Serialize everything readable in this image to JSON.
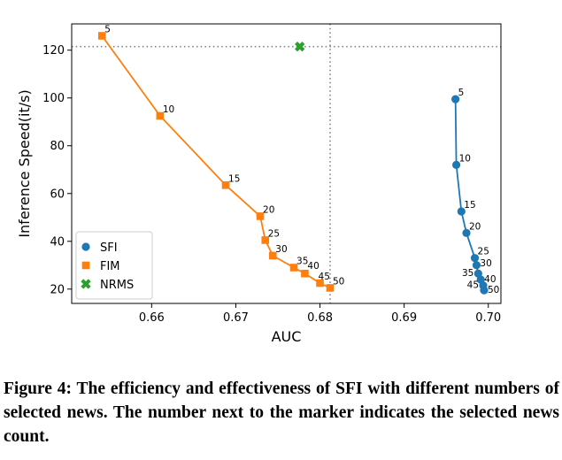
{
  "chart_data": {
    "type": "scatter",
    "xlabel": "AUC",
    "ylabel": "Inference Speed(it/s)",
    "xlim": [
      0.6505,
      0.7015
    ],
    "ylim": [
      14,
      131
    ],
    "xticks": [
      "0.66",
      "0.67",
      "0.68",
      "0.69",
      "0.70"
    ],
    "xtick_values": [
      0.66,
      0.67,
      0.68,
      0.69,
      0.7
    ],
    "yticks": [
      "20",
      "40",
      "60",
      "80",
      "100",
      "120"
    ],
    "ytick_values": [
      20,
      40,
      60,
      80,
      100,
      120
    ],
    "legend_position": "lower-left",
    "series": [
      {
        "name": "SFI",
        "color": "#1f77b4",
        "marker": "circle",
        "x": [
          0.6961,
          0.6962,
          0.6968,
          0.6974,
          0.6984,
          0.6986,
          0.6988,
          0.6991,
          0.6994,
          0.6995
        ],
        "y": [
          99.5,
          72,
          52.5,
          43.5,
          33,
          30,
          26.5,
          24,
          21.5,
          19.5
        ],
        "labels": [
          "5",
          "10",
          "15",
          "20",
          "25",
          "30",
          "35",
          "40",
          "45",
          "50"
        ]
      },
      {
        "name": "FIM",
        "color": "#ff7f0e",
        "marker": "square",
        "x": [
          0.6541,
          0.661,
          0.6688,
          0.6729,
          0.6735,
          0.6744,
          0.6769,
          0.6782,
          0.68,
          0.6812
        ],
        "y": [
          126,
          92.5,
          63.5,
          50.5,
          40.5,
          34,
          29,
          26.5,
          22.5,
          20.5
        ],
        "labels": [
          "5",
          "10",
          "15",
          "20",
          "25",
          "30",
          "35",
          "40",
          "45",
          "50"
        ]
      },
      {
        "name": "NRMS",
        "color": "#2ca02c",
        "marker": "cross",
        "x": [
          0.6776
        ],
        "y": [
          121.5
        ],
        "labels": [
          ""
        ]
      }
    ],
    "reference_lines": {
      "x": 0.6812,
      "y": 121.5,
      "style": "dotted",
      "color": "#808080"
    }
  },
  "caption": "Figure 4: The efficiency and effectiveness of SFI with different numbers of selected news. The number next to the marker indicates the selected news count."
}
